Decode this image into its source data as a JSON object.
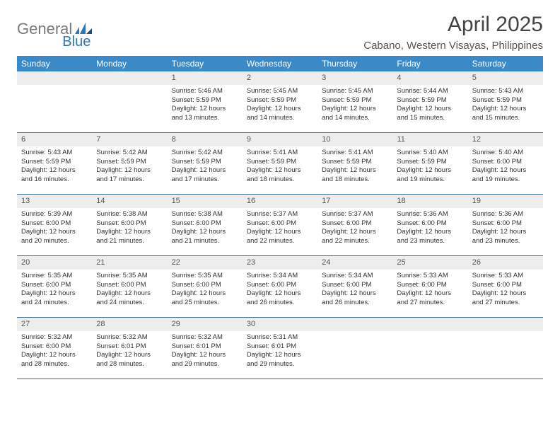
{
  "logo": {
    "text1": "General",
    "text2": "Blue"
  },
  "title": "April 2025",
  "location": "Cabano, Western Visayas, Philippines",
  "colors": {
    "header_bg": "#3a8ac9",
    "header_text": "#ffffff",
    "daynum_bg": "#ededed",
    "week_border": "#3a6a94",
    "logo_gray": "#7a7a7a",
    "logo_blue": "#2e75b6"
  },
  "weekdays": [
    "Sunday",
    "Monday",
    "Tuesday",
    "Wednesday",
    "Thursday",
    "Friday",
    "Saturday"
  ],
  "weeks": [
    [
      null,
      null,
      {
        "n": "1",
        "sr": "Sunrise: 5:46 AM",
        "ss": "Sunset: 5:59 PM",
        "dl1": "Daylight: 12 hours",
        "dl2": "and 13 minutes."
      },
      {
        "n": "2",
        "sr": "Sunrise: 5:45 AM",
        "ss": "Sunset: 5:59 PM",
        "dl1": "Daylight: 12 hours",
        "dl2": "and 14 minutes."
      },
      {
        "n": "3",
        "sr": "Sunrise: 5:45 AM",
        "ss": "Sunset: 5:59 PM",
        "dl1": "Daylight: 12 hours",
        "dl2": "and 14 minutes."
      },
      {
        "n": "4",
        "sr": "Sunrise: 5:44 AM",
        "ss": "Sunset: 5:59 PM",
        "dl1": "Daylight: 12 hours",
        "dl2": "and 15 minutes."
      },
      {
        "n": "5",
        "sr": "Sunrise: 5:43 AM",
        "ss": "Sunset: 5:59 PM",
        "dl1": "Daylight: 12 hours",
        "dl2": "and 15 minutes."
      }
    ],
    [
      {
        "n": "6",
        "sr": "Sunrise: 5:43 AM",
        "ss": "Sunset: 5:59 PM",
        "dl1": "Daylight: 12 hours",
        "dl2": "and 16 minutes."
      },
      {
        "n": "7",
        "sr": "Sunrise: 5:42 AM",
        "ss": "Sunset: 5:59 PM",
        "dl1": "Daylight: 12 hours",
        "dl2": "and 17 minutes."
      },
      {
        "n": "8",
        "sr": "Sunrise: 5:42 AM",
        "ss": "Sunset: 5:59 PM",
        "dl1": "Daylight: 12 hours",
        "dl2": "and 17 minutes."
      },
      {
        "n": "9",
        "sr": "Sunrise: 5:41 AM",
        "ss": "Sunset: 5:59 PM",
        "dl1": "Daylight: 12 hours",
        "dl2": "and 18 minutes."
      },
      {
        "n": "10",
        "sr": "Sunrise: 5:41 AM",
        "ss": "Sunset: 5:59 PM",
        "dl1": "Daylight: 12 hours",
        "dl2": "and 18 minutes."
      },
      {
        "n": "11",
        "sr": "Sunrise: 5:40 AM",
        "ss": "Sunset: 5:59 PM",
        "dl1": "Daylight: 12 hours",
        "dl2": "and 19 minutes."
      },
      {
        "n": "12",
        "sr": "Sunrise: 5:40 AM",
        "ss": "Sunset: 6:00 PM",
        "dl1": "Daylight: 12 hours",
        "dl2": "and 19 minutes."
      }
    ],
    [
      {
        "n": "13",
        "sr": "Sunrise: 5:39 AM",
        "ss": "Sunset: 6:00 PM",
        "dl1": "Daylight: 12 hours",
        "dl2": "and 20 minutes."
      },
      {
        "n": "14",
        "sr": "Sunrise: 5:38 AM",
        "ss": "Sunset: 6:00 PM",
        "dl1": "Daylight: 12 hours",
        "dl2": "and 21 minutes."
      },
      {
        "n": "15",
        "sr": "Sunrise: 5:38 AM",
        "ss": "Sunset: 6:00 PM",
        "dl1": "Daylight: 12 hours",
        "dl2": "and 21 minutes."
      },
      {
        "n": "16",
        "sr": "Sunrise: 5:37 AM",
        "ss": "Sunset: 6:00 PM",
        "dl1": "Daylight: 12 hours",
        "dl2": "and 22 minutes."
      },
      {
        "n": "17",
        "sr": "Sunrise: 5:37 AM",
        "ss": "Sunset: 6:00 PM",
        "dl1": "Daylight: 12 hours",
        "dl2": "and 22 minutes."
      },
      {
        "n": "18",
        "sr": "Sunrise: 5:36 AM",
        "ss": "Sunset: 6:00 PM",
        "dl1": "Daylight: 12 hours",
        "dl2": "and 23 minutes."
      },
      {
        "n": "19",
        "sr": "Sunrise: 5:36 AM",
        "ss": "Sunset: 6:00 PM",
        "dl1": "Daylight: 12 hours",
        "dl2": "and 23 minutes."
      }
    ],
    [
      {
        "n": "20",
        "sr": "Sunrise: 5:35 AM",
        "ss": "Sunset: 6:00 PM",
        "dl1": "Daylight: 12 hours",
        "dl2": "and 24 minutes."
      },
      {
        "n": "21",
        "sr": "Sunrise: 5:35 AM",
        "ss": "Sunset: 6:00 PM",
        "dl1": "Daylight: 12 hours",
        "dl2": "and 24 minutes."
      },
      {
        "n": "22",
        "sr": "Sunrise: 5:35 AM",
        "ss": "Sunset: 6:00 PM",
        "dl1": "Daylight: 12 hours",
        "dl2": "and 25 minutes."
      },
      {
        "n": "23",
        "sr": "Sunrise: 5:34 AM",
        "ss": "Sunset: 6:00 PM",
        "dl1": "Daylight: 12 hours",
        "dl2": "and 26 minutes."
      },
      {
        "n": "24",
        "sr": "Sunrise: 5:34 AM",
        "ss": "Sunset: 6:00 PM",
        "dl1": "Daylight: 12 hours",
        "dl2": "and 26 minutes."
      },
      {
        "n": "25",
        "sr": "Sunrise: 5:33 AM",
        "ss": "Sunset: 6:00 PM",
        "dl1": "Daylight: 12 hours",
        "dl2": "and 27 minutes."
      },
      {
        "n": "26",
        "sr": "Sunrise: 5:33 AM",
        "ss": "Sunset: 6:00 PM",
        "dl1": "Daylight: 12 hours",
        "dl2": "and 27 minutes."
      }
    ],
    [
      {
        "n": "27",
        "sr": "Sunrise: 5:32 AM",
        "ss": "Sunset: 6:00 PM",
        "dl1": "Daylight: 12 hours",
        "dl2": "and 28 minutes."
      },
      {
        "n": "28",
        "sr": "Sunrise: 5:32 AM",
        "ss": "Sunset: 6:01 PM",
        "dl1": "Daylight: 12 hours",
        "dl2": "and 28 minutes."
      },
      {
        "n": "29",
        "sr": "Sunrise: 5:32 AM",
        "ss": "Sunset: 6:01 PM",
        "dl1": "Daylight: 12 hours",
        "dl2": "and 29 minutes."
      },
      {
        "n": "30",
        "sr": "Sunrise: 5:31 AM",
        "ss": "Sunset: 6:01 PM",
        "dl1": "Daylight: 12 hours",
        "dl2": "and 29 minutes."
      },
      null,
      null,
      null
    ]
  ]
}
